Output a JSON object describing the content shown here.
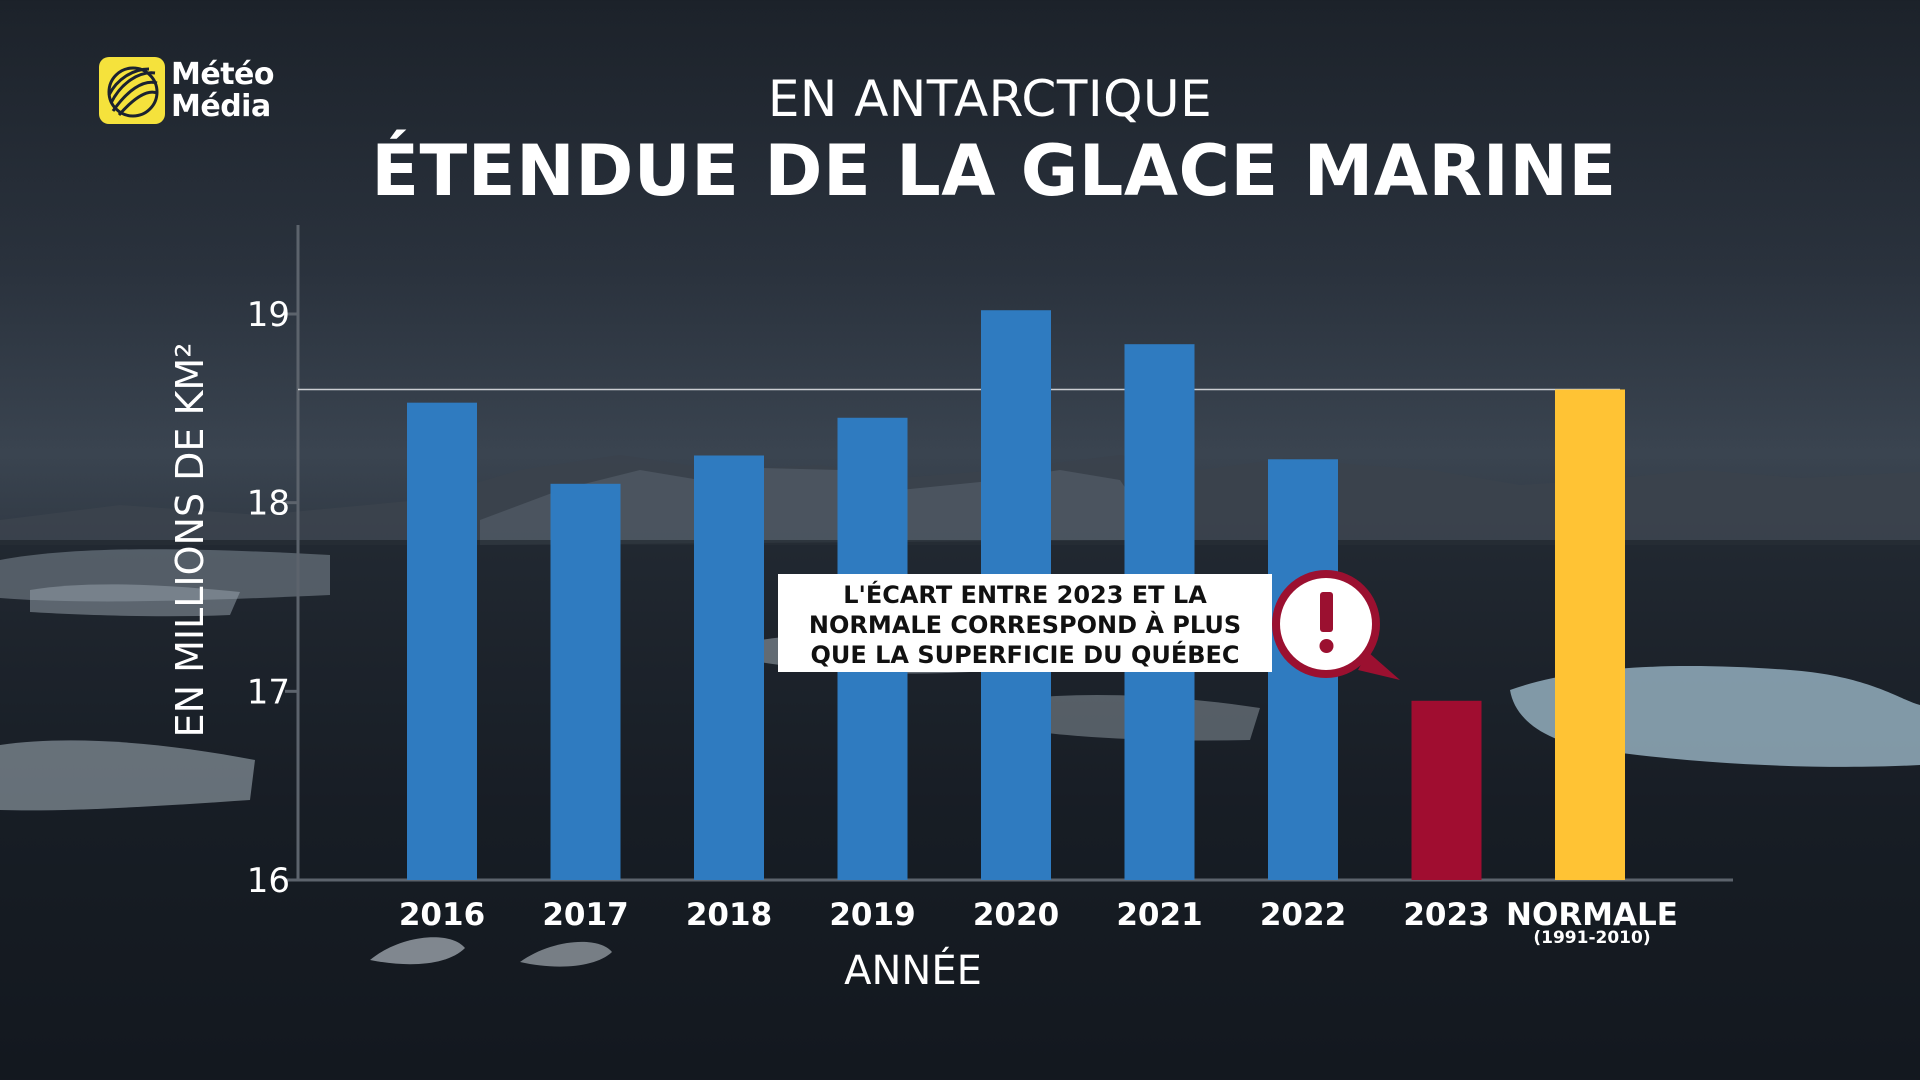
{
  "brand": {
    "line1": "Météo",
    "line2": "Média",
    "logo_color": "#f5e23c"
  },
  "header": {
    "subtitle": "EN ANTARCTIQUE",
    "title": "ÉTENDUE DE LA GLACE MARINE"
  },
  "callout": {
    "lines": [
      "L'ÉCART ENTRE 2023 ET LA",
      "NORMALE CORRESPOND À PLUS",
      "QUE LA SUPERFICIE DU QUÉBEC"
    ],
    "icon": "exclamation-icon",
    "icon_color": "#9b1030"
  },
  "chart_data": {
    "type": "bar",
    "title": "ÉTENDUE DE LA GLACE MARINE",
    "subtitle": "EN ANTARCTIQUE",
    "xlabel": "ANNÉE",
    "ylabel": "EN MILLIONS DE KM²",
    "ylim": [
      16,
      19.4
    ],
    "yticks": [
      16,
      17,
      18,
      19
    ],
    "categories": [
      "2016",
      "2017",
      "2018",
      "2019",
      "2020",
      "2021",
      "2022",
      "2023",
      "NORMALE"
    ],
    "category_sublabels": {
      "NORMALE": "(1991-2010)"
    },
    "values": [
      18.53,
      18.1,
      18.25,
      18.45,
      19.02,
      18.84,
      18.23,
      16.95,
      18.6
    ],
    "colors": [
      "#2f7bc0",
      "#2f7bc0",
      "#2f7bc0",
      "#2f7bc0",
      "#2f7bc0",
      "#2f7bc0",
      "#2f7bc0",
      "#a00d30",
      "#ffc334"
    ],
    "reference_line": 18.6,
    "grid": false
  }
}
